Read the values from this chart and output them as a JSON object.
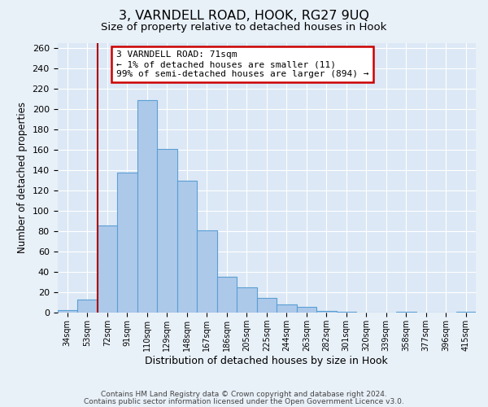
{
  "title1": "3, VARNDELL ROAD, HOOK, RG27 9UQ",
  "title2": "Size of property relative to detached houses in Hook",
  "xlabel": "Distribution of detached houses by size in Hook",
  "ylabel": "Number of detached properties",
  "bar_labels": [
    "34sqm",
    "53sqm",
    "72sqm",
    "91sqm",
    "110sqm",
    "129sqm",
    "148sqm",
    "167sqm",
    "186sqm",
    "205sqm",
    "225sqm",
    "244sqm",
    "263sqm",
    "282sqm",
    "301sqm",
    "320sqm",
    "339sqm",
    "358sqm",
    "377sqm",
    "396sqm",
    "415sqm"
  ],
  "bar_heights": [
    3,
    13,
    86,
    138,
    209,
    161,
    130,
    81,
    35,
    25,
    15,
    8,
    6,
    2,
    1,
    0,
    0,
    1,
    0,
    0,
    1
  ],
  "bar_color": "#adc9ea",
  "bar_edge_color": "#5a9fd4",
  "vline_color": "#aa0000",
  "annotation_title": "3 VARNDELL ROAD: 71sqm",
  "annotation_line1": "← 1% of detached houses are smaller (11)",
  "annotation_line2": "99% of semi-detached houses are larger (894) →",
  "annotation_box_color": "#cc0000",
  "ylim": [
    0,
    265
  ],
  "yticks": [
    0,
    20,
    40,
    60,
    80,
    100,
    120,
    140,
    160,
    180,
    200,
    220,
    240,
    260
  ],
  "footer1": "Contains HM Land Registry data © Crown copyright and database right 2024.",
  "footer2": "Contains public sector information licensed under the Open Government Licence v3.0.",
  "bg_color": "#e8f0f8",
  "plot_bg_color": "#dce8f5"
}
